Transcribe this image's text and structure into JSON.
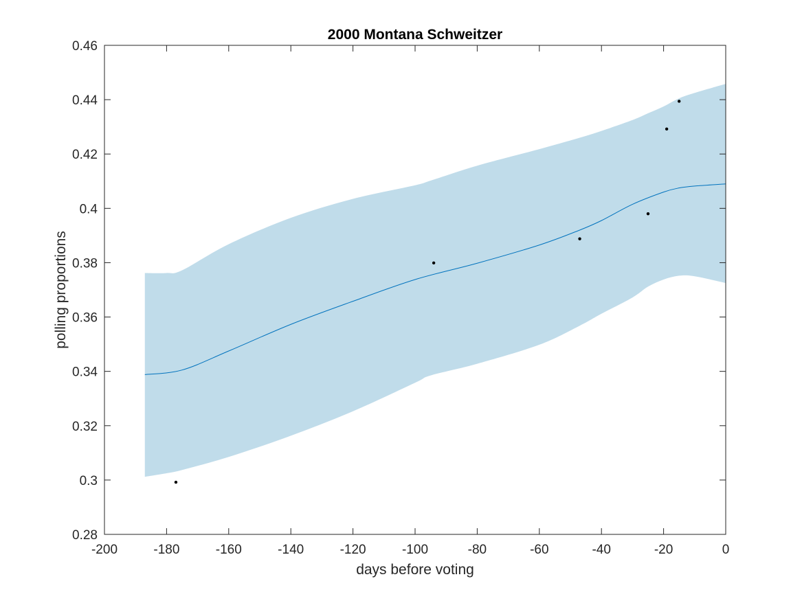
{
  "chart_data": {
    "type": "line",
    "title": "2000 Montana Schweitzer",
    "xlabel": "days before voting",
    "ylabel": "polling proportions",
    "xlim": [
      -200,
      0
    ],
    "ylim": [
      0.28,
      0.46
    ],
    "xticks": [
      -200,
      -180,
      -160,
      -140,
      -120,
      -100,
      -80,
      -60,
      -40,
      -20,
      0
    ],
    "xtick_labels": [
      "-200",
      "-180",
      "-160",
      "-140",
      "-120",
      "-100",
      "-80",
      "-60",
      "-40",
      "-20",
      "0"
    ],
    "yticks": [
      0.28,
      0.3,
      0.32,
      0.34,
      0.36,
      0.38,
      0.4,
      0.42,
      0.44,
      0.46
    ],
    "ytick_labels": [
      "0.28",
      "0.3",
      "0.32",
      "0.34",
      "0.36",
      "0.38",
      "0.4",
      "0.42",
      "0.44",
      "0.46"
    ],
    "grid": false,
    "legend": "none",
    "series": [
      {
        "type": "line",
        "color": "#0072BD",
        "x": [
          -187,
          -175,
          -160,
          -140,
          -120,
          -100,
          -80,
          -60,
          -47,
          -40,
          -30,
          -20,
          -15,
          -10,
          0
        ],
        "y": [
          0.3388,
          0.3405,
          0.3475,
          0.3573,
          0.3658,
          0.3738,
          0.3798,
          0.3865,
          0.392,
          0.3955,
          0.4015,
          0.406,
          0.4075,
          0.4082,
          0.409
        ]
      },
      {
        "type": "area",
        "color": "#C0DCEA",
        "x": [
          -187,
          -180,
          -175,
          -160,
          -140,
          -120,
          -100,
          -95,
          -80,
          -60,
          -47,
          -40,
          -30,
          -25,
          -20,
          -15,
          -10,
          0
        ],
        "upper": [
          0.3762,
          0.3762,
          0.3772,
          0.3868,
          0.3965,
          0.4035,
          0.4085,
          0.4102,
          0.4157,
          0.4218,
          0.426,
          0.4285,
          0.4325,
          0.435,
          0.4375,
          0.4405,
          0.4425,
          0.4458
        ],
        "lower": [
          0.3012,
          0.3025,
          0.3037,
          0.3085,
          0.3163,
          0.3253,
          0.3358,
          0.3385,
          0.3428,
          0.3498,
          0.3568,
          0.3612,
          0.3672,
          0.3712,
          0.3738,
          0.3752,
          0.375,
          0.3725
        ]
      },
      {
        "type": "scatter",
        "color": "#000000",
        "x": [
          -177,
          -94,
          -47,
          -25,
          -19,
          -15
        ],
        "y": [
          0.2992,
          0.3799,
          0.3888,
          0.398,
          0.4292,
          0.4394
        ]
      }
    ]
  }
}
